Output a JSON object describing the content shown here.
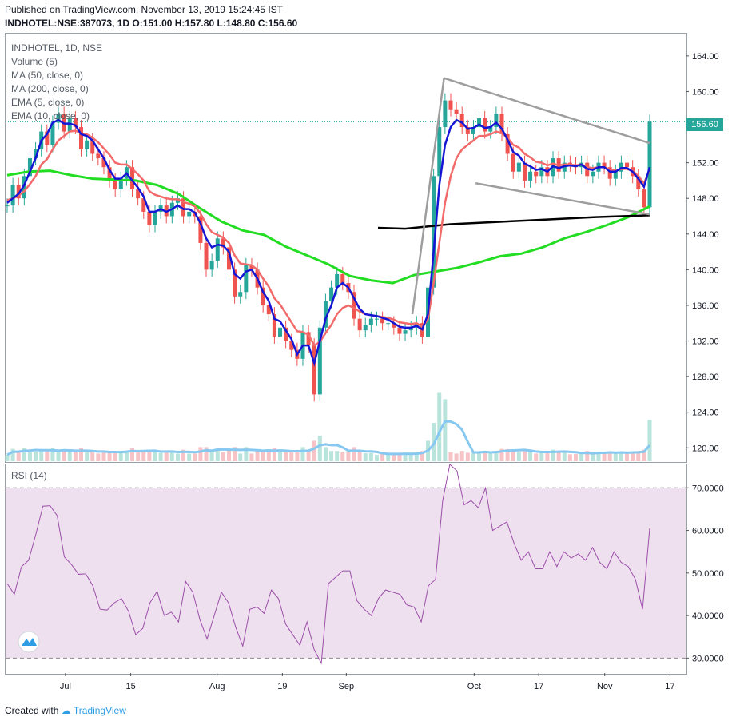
{
  "header": {
    "published": "Published on TradingView.com, November 13, 2019 15:24:45 IST",
    "symbol_line": "INDHOTEL:NSE:387073, 1D O:151.00 H:157.80 L:148.80 C:156.60"
  },
  "legend": {
    "title": "INDHOTEL, 1D, NSE",
    "items": [
      "Volume (5)",
      "MA (50, close, 0)",
      "MA (200, close, 0)",
      "EMA (5, close, 0)",
      "EMA (10, close, 0)"
    ]
  },
  "rsi_label": "RSI (14)",
  "last_price": "156.60",
  "footer": {
    "created": "Created with",
    "brand": "TradingView"
  },
  "colors": {
    "up": "#26a69a",
    "down": "#ef5350",
    "ema5": "#1515d6",
    "ema10": "#f26a6a",
    "ma50": "#22dd22",
    "ma200": "#000000",
    "trendline": "#9e9e9e",
    "rsi": "#9b4fa8",
    "rsi_band": "#efe0f0"
  },
  "chart_data": [
    {
      "type": "candlestick",
      "title": "INDHOTEL, 1D, NSE",
      "x_ticks": [
        "Jul",
        "15",
        "Aug",
        "19",
        "Sep",
        "Oct",
        "17",
        "Nov",
        "17"
      ],
      "y_ticks": [
        "120.00",
        "124.00",
        "128.00",
        "132.00",
        "136.00",
        "140.00",
        "144.00",
        "148.00",
        "152.00",
        "156.00",
        "160.00",
        "164.00"
      ],
      "ylim": [
        118.5,
        166.5
      ],
      "grid": false,
      "last_close": 156.6,
      "closes": [
        147.2,
        149.5,
        148,
        150.5,
        152.5,
        153.5,
        155.5,
        154,
        156.5,
        157.5,
        155.5,
        157,
        156,
        153.5,
        154.5,
        153,
        152.5,
        151.5,
        150,
        149,
        150.2,
        151.5,
        149,
        148,
        146.5,
        145,
        146.5,
        147.2,
        146,
        147.5,
        148,
        146,
        146.5,
        146,
        143,
        140,
        141,
        143.5,
        142.5,
        140,
        137,
        137.5,
        140.5,
        140,
        138,
        136,
        135,
        132.5,
        133.5,
        132,
        131,
        130,
        133,
        131.5,
        126,
        133.5,
        136.5,
        138,
        139.5,
        138.5,
        137.5,
        134.5,
        133.2,
        133.8,
        134.5,
        134.5,
        134,
        134,
        133.5,
        132.8,
        133.2,
        133.5,
        134,
        132.5,
        138,
        150.5,
        156,
        159,
        158,
        157.5,
        156,
        155.2,
        156,
        157,
        155.5,
        156,
        157.5,
        155.2,
        153,
        151,
        152,
        150,
        151,
        150.5,
        151.5,
        150.5,
        152.5,
        151,
        152,
        151.8,
        151.5,
        152,
        150.5,
        151,
        152,
        151.5,
        150.2,
        151,
        152,
        151.5,
        150.5,
        149,
        147,
        156.6
      ],
      "ema5": [
        147.5,
        148,
        148.5,
        149.5,
        151,
        152.5,
        154.5,
        155.2,
        156.5,
        156.8,
        156.4,
        156.4,
        156.2,
        155.2,
        155,
        154.5,
        153.5,
        152.5,
        151.2,
        150.2,
        150.2,
        150.8,
        150,
        149.2,
        148.2,
        146.5,
        146.5,
        146.8,
        146.5,
        146.8,
        147.2,
        146.8,
        146.8,
        146.4,
        145.2,
        143.5,
        142.5,
        142.8,
        142.7,
        142,
        139.5,
        139,
        139.8,
        140,
        139,
        137.5,
        136.5,
        134.5,
        134.2,
        133.2,
        132.2,
        130.5,
        131.5,
        131.5,
        129.5,
        132,
        134.5,
        136,
        138,
        138.5,
        138,
        136.8,
        135.6,
        135,
        134.9,
        134.8,
        134.6,
        134.4,
        134,
        133.6,
        133.5,
        133.5,
        133.7,
        133.3,
        135,
        142,
        149.5,
        154,
        156,
        156.8,
        156.5,
        155.8,
        155.9,
        156.3,
        155.9,
        156,
        156.5,
        155.8,
        154.6,
        153.2,
        152.8,
        151.9,
        151.6,
        151.2,
        151.3,
        151,
        151.6,
        151.4,
        151.6,
        151.7,
        151.6,
        151.8,
        151.3,
        151.2,
        151.5,
        151.5,
        151,
        151,
        151.4,
        151.4,
        151,
        150.2,
        149.3,
        151.5
      ],
      "ema10": [
        147.8,
        148,
        148.3,
        148.8,
        149.6,
        150.5,
        151.8,
        152.4,
        153.5,
        154.5,
        155,
        155.5,
        155.6,
        155.3,
        155.2,
        154.8,
        154.3,
        153.6,
        152.9,
        152,
        151.8,
        151.8,
        151.3,
        150.7,
        150,
        148.8,
        148.4,
        148.2,
        148,
        147.9,
        147.9,
        147.6,
        147.4,
        147.1,
        146.3,
        145.1,
        144.2,
        143.9,
        143.6,
        143,
        141.6,
        140.7,
        140.6,
        140.5,
        140,
        139,
        138.1,
        136.8,
        136.1,
        135.1,
        134.1,
        133.1,
        133,
        132.7,
        131.5,
        131.9,
        132.9,
        133.8,
        135,
        135.7,
        136,
        135.7,
        135.3,
        135,
        134.9,
        134.8,
        134.7,
        134.6,
        134.4,
        134.1,
        134,
        133.9,
        134,
        133.6,
        134.4,
        138.5,
        143,
        147.5,
        150.5,
        152.5,
        153.5,
        154,
        154.5,
        155,
        155,
        155.2,
        155.5,
        155.3,
        154.8,
        154,
        153.7,
        153,
        152.6,
        152.1,
        152,
        151.7,
        151.9,
        151.7,
        151.8,
        151.8,
        151.7,
        151.8,
        151.5,
        151.4,
        151.5,
        151.5,
        151.2,
        151.1,
        151.3,
        151.3,
        151.1,
        150.5,
        149.7,
        151.2
      ],
      "ma50": [
        [
          0,
          150.6
        ],
        [
          10,
          151
        ],
        [
          20,
          151.1
        ],
        [
          30,
          150.6
        ],
        [
          40,
          150.2
        ],
        [
          50,
          150.1
        ],
        [
          60,
          150
        ],
        [
          70,
          149.5
        ],
        [
          80,
          148.5
        ],
        [
          90,
          146.9
        ],
        [
          100,
          145.4
        ],
        [
          110,
          144.4
        ],
        [
          120,
          143.9
        ],
        [
          130,
          142.6
        ],
        [
          140,
          141.6
        ],
        [
          150,
          140.6
        ],
        [
          160,
          139.3
        ],
        [
          170,
          138.8
        ],
        [
          180,
          138.5
        ],
        [
          190,
          139.4
        ],
        [
          200,
          139.8
        ],
        [
          210,
          140.2
        ],
        [
          220,
          140.8
        ],
        [
          230,
          141.5
        ],
        [
          240,
          141.8
        ],
        [
          250,
          142.5
        ],
        [
          260,
          143.5
        ],
        [
          270,
          144.2
        ],
        [
          280,
          145
        ],
        [
          290,
          145.9
        ],
        [
          300,
          147.1
        ]
      ],
      "ma200": [
        [
          0,
          144.7
        ],
        [
          30,
          144.6
        ],
        [
          80,
          145.1
        ],
        [
          180,
          145.6
        ],
        [
          240,
          145.9
        ],
        [
          300,
          146.1
        ]
      ],
      "trendlines": [
        [
          [
            0,
            135
          ],
          [
            40,
            161.5
          ]
        ],
        [
          [
            40,
            161.5
          ],
          [
            300,
            154.2
          ]
        ],
        [
          [
            80,
            149.7
          ],
          [
            300,
            146.2
          ]
        ]
      ]
    },
    {
      "type": "bar",
      "title": "Volume (5)",
      "note": "volume bars coloured by candle direction with a 5-period average line"
    },
    {
      "type": "line",
      "title": "RSI (14)",
      "y_ticks": [
        "30.0000",
        "40.0000",
        "50.0000",
        "60.0000",
        "70.0000"
      ],
      "ylim": [
        26.5,
        75.5
      ],
      "bands": [
        30,
        70
      ],
      "values": [
        47.5,
        45,
        51.5,
        53,
        59,
        65.7,
        65.8,
        63.5,
        53.8,
        52,
        49.7,
        49.8,
        47,
        41.5,
        41.3,
        43,
        44,
        41,
        35.5,
        37,
        43,
        45.7,
        40,
        40.8,
        38.5,
        48,
        45.5,
        39,
        34.5,
        40,
        45.5,
        43,
        37.3,
        32.8,
        41.5,
        42,
        40.5,
        46,
        44,
        38,
        35.5,
        33,
        38.5,
        32,
        28.8,
        47.5,
        49,
        50.5,
        50.5,
        43.5,
        41.5,
        40,
        44,
        46,
        45.5,
        45,
        42.5,
        42,
        38.5,
        47,
        48.5,
        67,
        75.5,
        74,
        66,
        67,
        65.3,
        70,
        60,
        61,
        62,
        57,
        53,
        55,
        51,
        51,
        55,
        51.5,
        55,
        53.5,
        54.5,
        53,
        56,
        52.5,
        51,
        55,
        52.5,
        51.5,
        48.5,
        41.5,
        60.5
      ]
    }
  ]
}
